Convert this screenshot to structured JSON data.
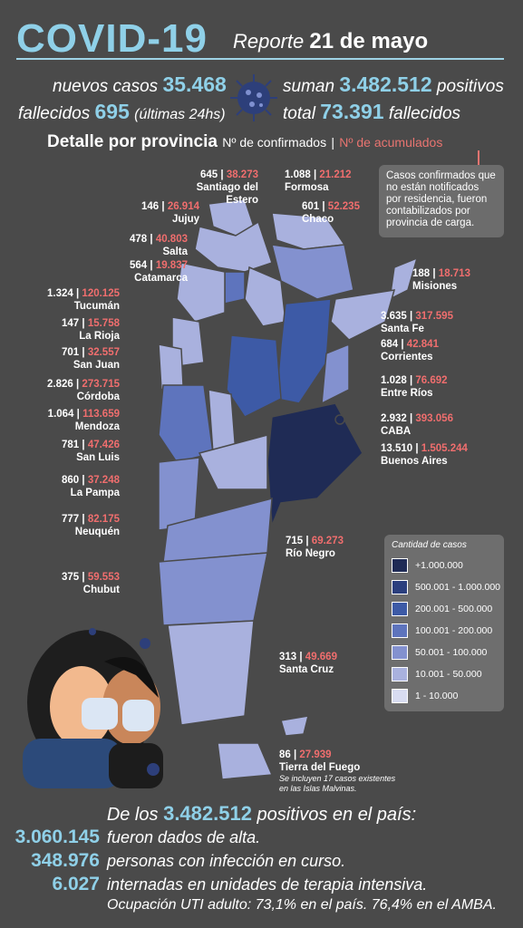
{
  "header": {
    "title": "COVID-19",
    "report_label": "Reporte",
    "report_date": "21 de mayo"
  },
  "stats": {
    "new_cases_label": "nuevos casos",
    "new_cases": "35.468",
    "total_label": "suman",
    "total_positive": "3.482.512",
    "positive_label": "positivos",
    "deaths_label": "fallecidos",
    "deaths": "695",
    "deaths_note": "(últimas 24hs)",
    "total_deaths_label": "total",
    "total_deaths": "73.391",
    "total_deaths_suffix": "fallecidos"
  },
  "detail": {
    "title": "Detalle por provincia",
    "confirmed_label": "Nº de confirmados",
    "separator": "|",
    "accumulated_label": "Nº de acumulados",
    "note": "Casos confirmados que no están notificados por residencia, fueron contabilizados por provincia de carga."
  },
  "provinces": [
    {
      "name": "Santiago del Estero",
      "new": "645",
      "acc": "38.273"
    },
    {
      "name": "Formosa",
      "new": "1.088",
      "acc": "21.212"
    },
    {
      "name": "Jujuy",
      "new": "146",
      "acc": "26.914"
    },
    {
      "name": "Chaco",
      "new": "601",
      "acc": "52.235"
    },
    {
      "name": "Salta",
      "new": "478",
      "acc": "40.803"
    },
    {
      "name": "Catamarca",
      "new": "564",
      "acc": "19.837"
    },
    {
      "name": "Misiones",
      "new": "188",
      "acc": "18.713"
    },
    {
      "name": "Tucumán",
      "new": "1.324",
      "acc": "120.125"
    },
    {
      "name": "La Rioja",
      "new": "147",
      "acc": "15.758"
    },
    {
      "name": "Santa Fe",
      "new": "3.635",
      "acc": "317.595"
    },
    {
      "name": "San Juan",
      "new": "701",
      "acc": "32.557"
    },
    {
      "name": "Corrientes",
      "new": "684",
      "acc": "42.841"
    },
    {
      "name": "Córdoba",
      "new": "2.826",
      "acc": "273.715"
    },
    {
      "name": "Entre Ríos",
      "new": "1.028",
      "acc": "76.692"
    },
    {
      "name": "Mendoza",
      "new": "1.064",
      "acc": "113.659"
    },
    {
      "name": "CABA",
      "new": "2.932",
      "acc": "393.056"
    },
    {
      "name": "San Luis",
      "new": "781",
      "acc": "47.426"
    },
    {
      "name": "Buenos Aires",
      "new": "13.510",
      "acc": "1.505.244"
    },
    {
      "name": "La Pampa",
      "new": "860",
      "acc": "37.248"
    },
    {
      "name": "Neuquén",
      "new": "777",
      "acc": "82.175"
    },
    {
      "name": "Río Negro",
      "new": "715",
      "acc": "69.273"
    },
    {
      "name": "Chubut",
      "new": "375",
      "acc": "59.553"
    },
    {
      "name": "Santa Cruz",
      "new": "313",
      "acc": "49.669"
    },
    {
      "name": "Tierra del Fuego",
      "new": "86",
      "acc": "27.939",
      "note": "Se incluyen 17 casos existentes en las Islas Malvinas."
    }
  ],
  "legend": {
    "title": "Cantidad de casos",
    "items": [
      {
        "label": "+1.000.000",
        "color": "#1f2b55"
      },
      {
        "label": "500.001 - 1.000.000",
        "color": "#2b3f7e"
      },
      {
        "label": "200.001 - 500.000",
        "color": "#3d5aa6"
      },
      {
        "label": "100.001 - 200.000",
        "color": "#5e74bd"
      },
      {
        "label": "50.001 - 100.000",
        "color": "#8391cf"
      },
      {
        "label": "10.001 - 50.000",
        "color": "#a9b1de"
      },
      {
        "label": "1 - 10.000",
        "color": "#d8dcf1"
      }
    ]
  },
  "footer": {
    "intro_prefix": "De los",
    "intro_total": "3.482.512",
    "intro_suffix": "positivos en el país:",
    "lines": [
      {
        "num": "3.060.145",
        "text": "fueron dados de alta."
      },
      {
        "num": "348.976",
        "text": "personas con infección en curso."
      },
      {
        "num": "6.027",
        "text": "internadas en unidades de terapia intensiva."
      }
    ],
    "occupancy_prefix": "Ocupación UTI adulto:",
    "occupancy_country": "73,1%",
    "occupancy_mid": "en el país.",
    "occupancy_amba": "76,4%",
    "occupancy_suffix": "en el AMBA."
  }
}
